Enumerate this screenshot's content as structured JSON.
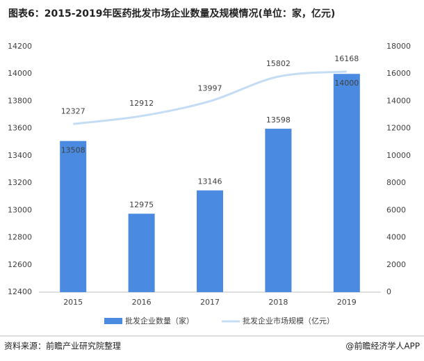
{
  "chart_data": {
    "type": "bar_line",
    "title": "图表6：2015-2019年医药批发市场企业数量及规模情况(单位：家，亿元)",
    "categories": [
      "2015",
      "2016",
      "2017",
      "2018",
      "2019"
    ],
    "series": [
      {
        "name": "批发企业数量（家）",
        "type": "bar",
        "color": "#4a8ae0",
        "axis": "y",
        "values": [
          13508,
          12975,
          13146,
          13598,
          14000
        ]
      },
      {
        "name": "批发企业市场规模（亿元）",
        "type": "line",
        "color": "#c5dcf5",
        "axis": "y2",
        "values": [
          12327,
          12912,
          13997,
          15802,
          16168
        ]
      }
    ],
    "ylim": [
      12400,
      14200
    ],
    "yticks": [
      12400,
      12600,
      12800,
      13000,
      13200,
      13400,
      13600,
      13800,
      14000,
      14200
    ],
    "y2lim": [
      0,
      18000
    ],
    "y2ticks": [
      0,
      2000,
      4000,
      6000,
      8000,
      10000,
      12000,
      14000,
      16000,
      18000
    ],
    "grid": false,
    "source": "资料来源：前瞻产业研究院整理",
    "brand": "@前瞻经济学人APP"
  }
}
